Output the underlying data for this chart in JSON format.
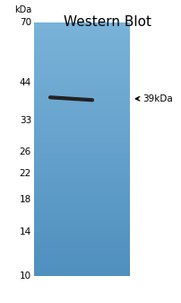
{
  "title": "Western Blot",
  "title_fontsize": 11,
  "title_color": "#000000",
  "gel_color_top": "#7ab3d9",
  "gel_color_bottom": "#5090bf",
  "gel_color_mid": "#6aa3cc",
  "kda_label": "kDa",
  "mw_markers": [
    70,
    44,
    33,
    26,
    22,
    18,
    14,
    10
  ],
  "band_mw": 39,
  "band_label": "39kDa",
  "band_color": "#222222",
  "band_linewidth": 3.0,
  "arrow_color": "#000000",
  "label_color": "#000000",
  "background_color": "#ffffff",
  "fig_width": 2.03,
  "fig_height": 3.37,
  "dpi": 100
}
